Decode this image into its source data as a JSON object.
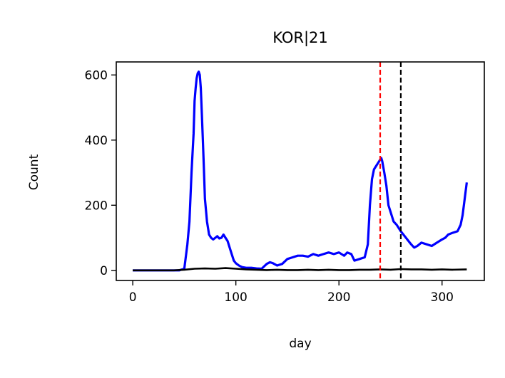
{
  "chart_data": {
    "type": "line",
    "title": "KOR|21",
    "xlabel": "day",
    "ylabel": "Count",
    "xlim": [
      -16,
      341
    ],
    "ylim": [
      -31,
      640
    ],
    "xticks": [
      0,
      100,
      200,
      300
    ],
    "yticks": [
      0,
      200,
      400,
      600
    ],
    "grid": false,
    "legend": "none",
    "series": [
      {
        "color": "#0000ff",
        "x": [
          0,
          10,
          20,
          30,
          40,
          45,
          50,
          53,
          55,
          57,
          59,
          60,
          61,
          62,
          63,
          64,
          65,
          66,
          67,
          68,
          69,
          70,
          72,
          74,
          76,
          78,
          80,
          82,
          84,
          86,
          88,
          90,
          92,
          95,
          98,
          100,
          103,
          106,
          110,
          115,
          120,
          125,
          130,
          133,
          136,
          140,
          145,
          150,
          155,
          160,
          165,
          170,
          175,
          180,
          185,
          190,
          195,
          200,
          205,
          208,
          212,
          215,
          220,
          225,
          228,
          230,
          232,
          234,
          236,
          238,
          240,
          241,
          242,
          244,
          246,
          248,
          250,
          253,
          256,
          260,
          265,
          270,
          273,
          276,
          280,
          285,
          290,
          295,
          300,
          303,
          306,
          310,
          315,
          318,
          320,
          322,
          324
        ],
        "values": [
          0,
          0,
          0,
          0,
          0,
          0,
          5,
          80,
          150,
          300,
          420,
          520,
          560,
          590,
          605,
          610,
          600,
          560,
          480,
          400,
          310,
          220,
          150,
          110,
          100,
          95,
          100,
          105,
          98,
          100,
          110,
          100,
          90,
          60,
          30,
          22,
          15,
          10,
          8,
          8,
          6,
          5,
          20,
          25,
          22,
          15,
          20,
          35,
          40,
          45,
          45,
          42,
          50,
          45,
          50,
          55,
          50,
          55,
          45,
          55,
          50,
          30,
          35,
          40,
          80,
          200,
          280,
          310,
          320,
          330,
          340,
          345,
          335,
          300,
          260,
          200,
          180,
          150,
          140,
          120,
          100,
          80,
          70,
          75,
          85,
          80,
          75,
          85,
          95,
          100,
          110,
          115,
          120,
          140,
          170,
          220,
          270
        ]
      },
      {
        "color": "#000000",
        "x": [
          0,
          10,
          20,
          30,
          40,
          50,
          60,
          70,
          80,
          90,
          100,
          110,
          120,
          130,
          140,
          150,
          160,
          170,
          180,
          190,
          200,
          210,
          220,
          230,
          240,
          250,
          260,
          270,
          280,
          290,
          300,
          310,
          324
        ],
        "values": [
          0,
          0,
          0,
          0,
          0,
          2,
          5,
          6,
          5,
          7,
          5,
          3,
          2,
          1,
          2,
          1,
          1,
          2,
          1,
          2,
          1,
          1,
          2,
          2,
          3,
          2,
          4,
          3,
          3,
          2,
          3,
          2,
          3
        ]
      }
    ],
    "vlines": [
      {
        "x": 240,
        "color": "#ff0000",
        "style": "dashed"
      },
      {
        "x": 260,
        "color": "#000000",
        "style": "dashed"
      }
    ]
  }
}
